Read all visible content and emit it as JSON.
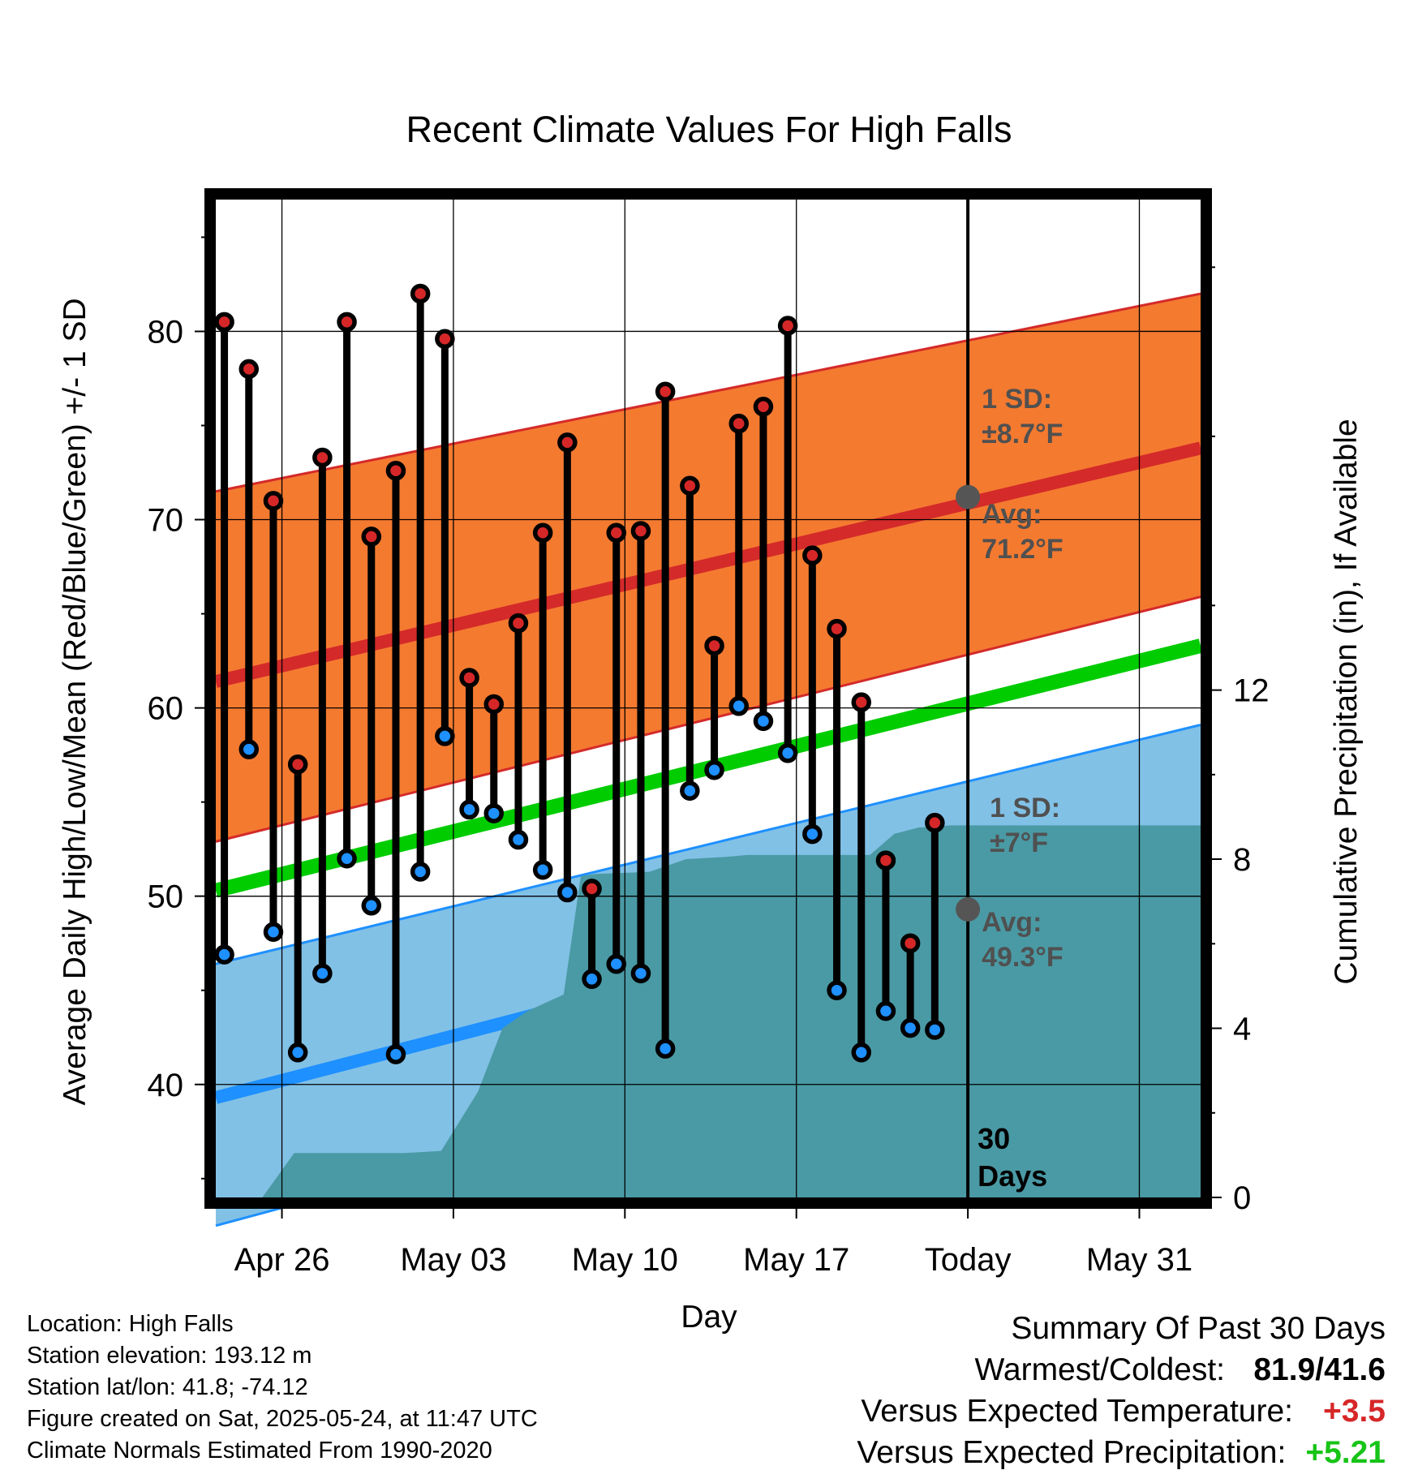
{
  "chart_data": {
    "type": "scatter",
    "title": "Recent Climate Values For High Falls",
    "xlabel": "Day",
    "ylabel": "Average Daily High/Low/Mean (Red/Blue/Green) +/- 1 SD",
    "y2label": "Cumulative Precipitation (in), If Available",
    "x_ticks": [
      "Apr 26",
      "May 03",
      "May 10",
      "May 17",
      "Today",
      "May 31"
    ],
    "x_tick_days": [
      2,
      9,
      16,
      23,
      30,
      37
    ],
    "y_ticks": [
      40,
      50,
      60,
      70,
      80
    ],
    "ylim": [
      34,
      87
    ],
    "y2_ticks": [
      0,
      4,
      8,
      12
    ],
    "y2lim": [
      0,
      23.6
    ],
    "xlim": [
      -0.7,
      39.5
    ],
    "grid": true,
    "today_day": 30,
    "today_label": "30",
    "today_label2": "Days",
    "series": [
      {
        "name": "High",
        "color": "#d62728",
        "values": [
          80.5,
          78,
          71,
          57,
          73.3,
          80.5,
          69.1,
          72.6,
          82,
          79.6,
          61.6,
          60.2,
          64.5,
          69.3,
          74.1,
          50.4,
          69.3,
          69.4,
          76.8,
          71.8,
          63.3,
          75.1,
          76,
          80.3,
          68.1,
          64.2,
          60.3,
          51.9,
          47.5,
          53.9
        ]
      },
      {
        "name": "Low",
        "color": "#1e90ff",
        "values": [
          46.9,
          57.8,
          48.1,
          41.7,
          45.9,
          52,
          49.5,
          41.6,
          51.3,
          58.5,
          54.6,
          54.4,
          53,
          51.4,
          50.2,
          45.6,
          46.4,
          45.9,
          41.9,
          55.6,
          56.7,
          60.1,
          59.3,
          57.6,
          53.3,
          45,
          41.7,
          43.9,
          43,
          42.9
        ]
      }
    ],
    "x_days": [
      -0.35,
      0.65,
      1.65,
      2.65,
      3.65,
      4.65,
      5.65,
      6.65,
      7.65,
      8.65,
      9.65,
      10.65,
      11.65,
      12.65,
      13.65,
      14.65,
      15.65,
      16.65,
      17.65,
      18.65,
      19.65,
      20.65,
      21.65,
      22.65,
      23.65,
      24.65,
      25.65,
      26.65,
      27.65,
      28.65
    ],
    "normals": {
      "days": [
        -0.7,
        39.5
      ],
      "high_avg": [
        61.4,
        73.8
      ],
      "high_upper": [
        71.5,
        82.0
      ],
      "high_lower": [
        52.9,
        65.9
      ],
      "mean_avg": [
        50.3,
        63.3
      ],
      "low_avg": [
        39.3,
        52.9
      ],
      "low_upper": [
        46.4,
        59.1
      ],
      "low_lower": [
        32.5,
        46.6
      ]
    },
    "precip": {
      "days": [
        1.2,
        2.5,
        7,
        8.5,
        10,
        11,
        12,
        13.5,
        14.2,
        14.8,
        17,
        18.5,
        20,
        21,
        26,
        27,
        28,
        29.3,
        39.5
      ],
      "values": [
        0,
        1.05,
        1.05,
        1.1,
        2.5,
        4.0,
        4.4,
        4.8,
        7.6,
        7.65,
        7.7,
        8.0,
        8.05,
        8.1,
        8.1,
        8.6,
        8.75,
        8.8,
        8.8
      ],
      "color": "#4a9aa5"
    },
    "annotations": {
      "high_sd": "1 SD:",
      "high_sd_val": "±8.7°F",
      "high_avg": "Avg:",
      "high_avg_val": "71.2°F",
      "high_avg_num": 71.2,
      "low_sd": "1 SD:",
      "low_sd_val": "±7°F",
      "low_avg": "Avg:",
      "low_avg_val": "49.3°F",
      "low_avg_num": 49.3
    }
  },
  "info": {
    "location": "Location: High Falls",
    "elevation": "Station elevation: 193.12 m",
    "latlon": "Station lat/lon: 41.8; -74.12",
    "created": "Figure created on Sat, 2025-05-24, at 11:47 UTC",
    "normals": "Climate Normals Estimated From 1990-2020"
  },
  "summary": {
    "title": "Summary Of Past 30 Days",
    "warm_cold_label": "Warmest/Coldest:",
    "warm_cold_value": "81.9/41.6",
    "temp_label": "Versus Expected Temperature:",
    "temp_value": "+3.5",
    "temp_color": "#d62728",
    "precip_label": "Versus Expected Precipitation:",
    "precip_value": "+5.21",
    "precip_color": "#17c417"
  },
  "colors": {
    "high_band": "#f47a30",
    "high_line": "#d42a2a",
    "low_band": "#82c1e6",
    "low_line": "#1e90ff",
    "mean_line": "#00cc00",
    "annotation_text": "#505050"
  }
}
